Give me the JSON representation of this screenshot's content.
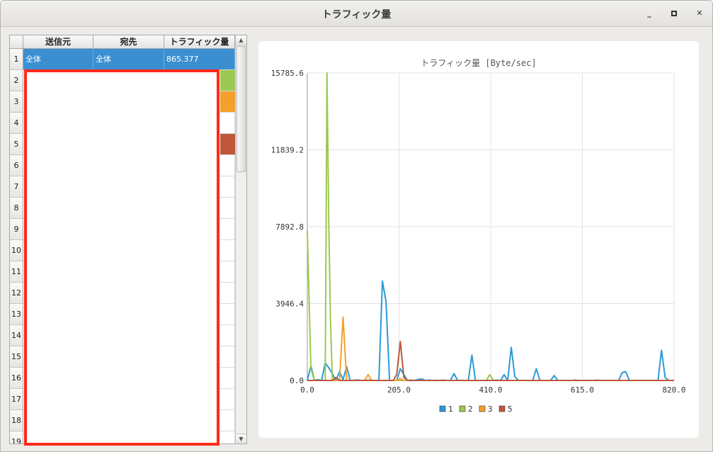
{
  "window": {
    "title": "トラフィック量",
    "minimize_icon": "minimize-icon",
    "maximize_icon": "maximize-icon",
    "close_icon": "close-icon"
  },
  "table": {
    "headers": [
      "送信元",
      "宛先",
      "トラフィック量"
    ],
    "row_numbers": [
      "1",
      "2",
      "3",
      "4",
      "5",
      "6",
      "7",
      "8",
      "9",
      "10",
      "11",
      "12",
      "13",
      "14",
      "15",
      "16",
      "17",
      "18",
      "19"
    ],
    "rows": [
      {
        "src": "全体",
        "dst": "全体",
        "traffic": "865.377",
        "color": ""
      },
      {
        "src": "",
        "dst": "",
        "traffic": "",
        "color": "#9bc850"
      },
      {
        "src": "",
        "dst": "",
        "traffic": "",
        "color": "#f5a02a"
      },
      {
        "src": "",
        "dst": "",
        "traffic": "",
        "color": ""
      },
      {
        "src": "",
        "dst": "",
        "traffic": "",
        "color": "#c0563a"
      }
    ]
  },
  "chart_data": {
    "type": "line",
    "title": "トラフィック量 [Byte/sec]",
    "xlim": [
      0,
      820
    ],
    "ylim": [
      0,
      15785.6
    ],
    "xticks": [
      "0.0",
      "205.0",
      "410.0",
      "615.0",
      "820.0"
    ],
    "yticks": [
      "0.0",
      "3946.4",
      "7892.8",
      "11839.2",
      "15785.6"
    ],
    "grid": true,
    "legend_position": "bottom",
    "series": [
      {
        "name": "1",
        "color": "#2b9bd8",
        "x": [
          0,
          8,
          16,
          24,
          32,
          40,
          48,
          56,
          64,
          72,
          80,
          88,
          96,
          104,
          112,
          120,
          128,
          136,
          144,
          152,
          160,
          168,
          176,
          184,
          192,
          200,
          208,
          216,
          224,
          232,
          240,
          248,
          256,
          264,
          272,
          280,
          288,
          296,
          304,
          312,
          320,
          328,
          336,
          344,
          352,
          360,
          368,
          376,
          384,
          392,
          400,
          408,
          416,
          424,
          432,
          440,
          448,
          456,
          464,
          472,
          480,
          488,
          496,
          504,
          512,
          520,
          528,
          536,
          544,
          552,
          560,
          568,
          576,
          584,
          592,
          600,
          608,
          616,
          624,
          632,
          640,
          648,
          656,
          664,
          672,
          680,
          688,
          696,
          704,
          712,
          720,
          728,
          736,
          744,
          752,
          760,
          768,
          776,
          784,
          792,
          800,
          808,
          816,
          820
        ],
        "y": [
          0,
          750,
          0,
          40,
          0,
          900,
          650,
          350,
          0,
          450,
          50,
          700,
          0,
          10,
          30,
          0,
          0,
          20,
          0,
          0,
          0,
          5100,
          4050,
          0,
          0,
          0,
          600,
          300,
          0,
          20,
          0,
          50,
          80,
          0,
          20,
          0,
          10,
          0,
          20,
          0,
          0,
          350,
          0,
          10,
          0,
          0,
          1300,
          0,
          0,
          0,
          0,
          0,
          0,
          20,
          0,
          300,
          0,
          1700,
          200,
          0,
          0,
          0,
          0,
          0,
          600,
          0,
          0,
          0,
          0,
          250,
          0,
          0,
          0,
          0,
          0,
          20,
          0,
          0,
          0,
          0,
          0,
          20,
          0,
          0,
          0,
          0,
          0,
          0,
          400,
          450,
          0,
          0,
          0,
          0,
          0,
          0,
          0,
          0,
          0,
          1550,
          150,
          0,
          0,
          0
        ]
      },
      {
        "name": "2",
        "color": "#9bc850",
        "x": [
          0,
          8,
          16,
          24,
          32,
          40,
          44,
          48,
          52,
          56,
          64,
          72,
          80,
          88,
          96,
          104,
          112,
          120,
          160,
          200,
          240,
          280,
          320,
          360,
          400,
          408,
          416,
          440,
          480,
          520,
          560,
          600,
          640,
          680,
          720,
          760,
          800,
          820
        ],
        "y": [
          7700,
          600,
          0,
          0,
          0,
          0,
          15785,
          8200,
          3000,
          0,
          0,
          0,
          0,
          0,
          0,
          0,
          0,
          0,
          0,
          0,
          0,
          0,
          0,
          0,
          0,
          300,
          0,
          0,
          0,
          0,
          0,
          0,
          0,
          0,
          0,
          0,
          0,
          0
        ]
      },
      {
        "name": "3",
        "color": "#f5a02a",
        "x": [
          0,
          40,
          64,
          72,
          80,
          88,
          96,
          104,
          112,
          120,
          128,
          136,
          144,
          152,
          160,
          200,
          208,
          216,
          240,
          280,
          320,
          360,
          400,
          440,
          480,
          520,
          560,
          600,
          640,
          680,
          720,
          760,
          800,
          820
        ],
        "y": [
          0,
          0,
          0,
          0,
          3250,
          0,
          0,
          0,
          0,
          0,
          0,
          300,
          0,
          0,
          0,
          0,
          100,
          0,
          0,
          0,
          0,
          0,
          0,
          0,
          0,
          0,
          0,
          0,
          0,
          0,
          0,
          0,
          0,
          0
        ]
      },
      {
        "name": "5",
        "color": "#c0563a",
        "x": [
          0,
          48,
          56,
          64,
          72,
          80,
          120,
          160,
          192,
          200,
          208,
          216,
          224,
          240,
          280,
          320,
          360,
          400,
          440,
          480,
          520,
          560,
          600,
          640,
          680,
          720,
          760,
          800,
          820
        ],
        "y": [
          0,
          0,
          0,
          150,
          0,
          0,
          0,
          0,
          0,
          300,
          2000,
          150,
          0,
          0,
          0,
          0,
          0,
          0,
          0,
          0,
          0,
          0,
          0,
          0,
          0,
          0,
          0,
          0,
          0
        ]
      }
    ]
  }
}
